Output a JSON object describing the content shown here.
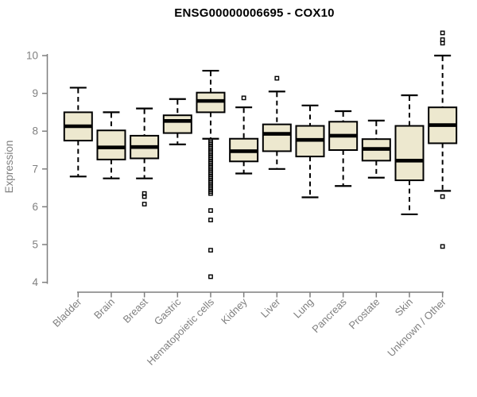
{
  "chart_data": {
    "type": "boxplot",
    "title": "ENSG00000006695 - COX10",
    "ylabel": "Expression",
    "xlabel": "",
    "ylim": [
      4,
      10.7
    ],
    "yticks": [
      4,
      5,
      6,
      7,
      8,
      9,
      10
    ],
    "grid": false,
    "legend": null,
    "categories": [
      "Bladder",
      "Brain",
      "Breast",
      "Gastric",
      "Hematopoietic cells",
      "Kidney",
      "Liver",
      "Lung",
      "Pancreas",
      "Prostate",
      "Skin",
      "Unknown / Other"
    ],
    "boxes": [
      {
        "category": "Bladder",
        "whisker_low": 6.8,
        "q1": 7.75,
        "median": 8.13,
        "q3": 8.5,
        "whisker_high": 9.15,
        "outliers": []
      },
      {
        "category": "Brain",
        "whisker_low": 6.75,
        "q1": 7.25,
        "median": 7.57,
        "q3": 8.02,
        "whisker_high": 8.5,
        "outliers": []
      },
      {
        "category": "Breast",
        "whisker_low": 6.75,
        "q1": 7.28,
        "median": 7.58,
        "q3": 7.88,
        "whisker_high": 8.6,
        "outliers": [
          6.35,
          6.27,
          6.07
        ]
      },
      {
        "category": "Gastric",
        "whisker_low": 7.65,
        "q1": 7.95,
        "median": 8.27,
        "q3": 8.42,
        "whisker_high": 8.85,
        "outliers": []
      },
      {
        "category": "Hematopoietic cells",
        "whisker_low": 7.8,
        "q1": 8.5,
        "median": 8.8,
        "q3": 9.02,
        "whisker_high": 9.6,
        "outliers": [
          7.75,
          7.7,
          7.65,
          7.6,
          7.55,
          7.5,
          7.45,
          7.4,
          7.35,
          7.3,
          7.25,
          7.2,
          7.15,
          7.1,
          7.05,
          7.0,
          6.95,
          6.9,
          6.85,
          6.8,
          6.75,
          6.7,
          6.65,
          6.6,
          6.55,
          6.5,
          6.45,
          6.4,
          6.35,
          5.9,
          5.65,
          4.85,
          4.15
        ]
      },
      {
        "category": "Kidney",
        "whisker_low": 6.88,
        "q1": 7.2,
        "median": 7.47,
        "q3": 7.8,
        "whisker_high": 8.63,
        "outliers": [
          8.88
        ]
      },
      {
        "category": "Liver",
        "whisker_low": 7.0,
        "q1": 7.47,
        "median": 7.93,
        "q3": 8.18,
        "whisker_high": 9.05,
        "outliers": [
          9.4
        ]
      },
      {
        "category": "Lung",
        "whisker_low": 6.25,
        "q1": 7.33,
        "median": 7.77,
        "q3": 8.14,
        "whisker_high": 8.68,
        "outliers": []
      },
      {
        "category": "Pancreas",
        "whisker_low": 6.55,
        "q1": 7.5,
        "median": 7.88,
        "q3": 8.25,
        "whisker_high": 8.53,
        "outliers": []
      },
      {
        "category": "Prostate",
        "whisker_low": 6.77,
        "q1": 7.22,
        "median": 7.53,
        "q3": 7.79,
        "whisker_high": 8.28,
        "outliers": []
      },
      {
        "category": "Skin",
        "whisker_low": 5.8,
        "q1": 6.7,
        "median": 7.22,
        "q3": 8.14,
        "whisker_high": 8.95,
        "outliers": []
      },
      {
        "category": "Unknown / Other",
        "whisker_low": 6.42,
        "q1": 7.68,
        "median": 8.16,
        "q3": 8.63,
        "whisker_high": 10.0,
        "outliers": [
          10.6,
          10.42,
          10.33,
          6.27,
          4.95
        ]
      }
    ],
    "colors": {
      "box_fill": "#EDE8CF",
      "box_border": "#000000",
      "median": "#000000",
      "whisker": "#000000",
      "outlier": "#000000",
      "axis": "#7F7F7F",
      "tick_label": "#808080",
      "title": "#000000",
      "background": "#FFFFFF"
    }
  }
}
